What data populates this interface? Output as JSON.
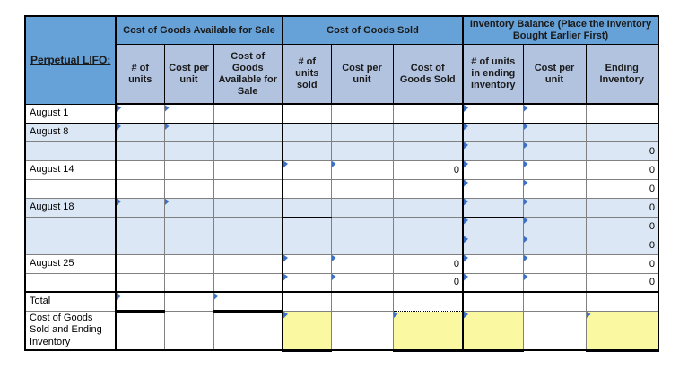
{
  "colors": {
    "header_blue": "#66A1D8",
    "subheader_blue": "#B2C3E0",
    "band_blue": "#DBE7F4",
    "highlight_yellow": "#FAF8A0",
    "marker_blue": "#3D70C4"
  },
  "table": {
    "corner_label": "Perpetual LIFO:",
    "groups": [
      {
        "label": "Cost of Goods Available for Sale"
      },
      {
        "label": "Cost of Goods Sold"
      },
      {
        "label": "Inventory Balance (Place the Inventory Bought Earlier First)"
      }
    ],
    "columns": [
      "# of units",
      "Cost per unit",
      "Cost of Goods Available for Sale",
      "# of units sold",
      "Cost per unit",
      "Cost of Goods Sold",
      "# of units in ending inventory",
      "Cost per unit",
      "Ending Inventory"
    ],
    "rows": [
      {
        "label": "August 1",
        "shade": "white",
        "markers": [
          2,
          3,
          8,
          9
        ],
        "values": {}
      },
      {
        "label": "August 8",
        "shade": "blue",
        "markers": [
          2,
          3,
          8,
          9
        ],
        "values": {}
      },
      {
        "label": "",
        "shade": "blue",
        "markers": [
          8,
          9
        ],
        "values": {
          "c10": "0"
        }
      },
      {
        "label": "August 14",
        "shade": "white",
        "markers": [
          5,
          6,
          8,
          9
        ],
        "values": {
          "c7": "0",
          "c10": "0"
        }
      },
      {
        "label": "",
        "shade": "white",
        "markers": [
          8,
          9
        ],
        "values": {
          "c10": "0"
        }
      },
      {
        "label": "August 18",
        "shade": "blue",
        "markers": [
          2,
          3,
          8,
          9
        ],
        "values": {
          "c10": "0"
        }
      },
      {
        "label": "",
        "shade": "blue",
        "markers": [
          8,
          9
        ],
        "values": {
          "c10": "0"
        }
      },
      {
        "label": "",
        "shade": "blue",
        "markers": [
          8,
          9
        ],
        "values": {
          "c10": "0"
        }
      },
      {
        "label": "August 25",
        "shade": "white",
        "markers": [
          5,
          6,
          8,
          9
        ],
        "values": {
          "c7": "0",
          "c10": "0"
        }
      },
      {
        "label": "",
        "shade": "white",
        "markers": [
          5,
          6,
          8,
          9
        ],
        "values": {
          "c7": "0",
          "c10": "0"
        }
      },
      {
        "label": "Total",
        "shade": "white",
        "markers": [
          2,
          4
        ],
        "values": {}
      },
      {
        "label": "Cost of Goods Sold and Ending Inventory",
        "shade": "white",
        "markers": [
          5,
          7,
          8,
          10
        ],
        "highlight": [
          5,
          7,
          8,
          10
        ],
        "values": {}
      }
    ]
  }
}
